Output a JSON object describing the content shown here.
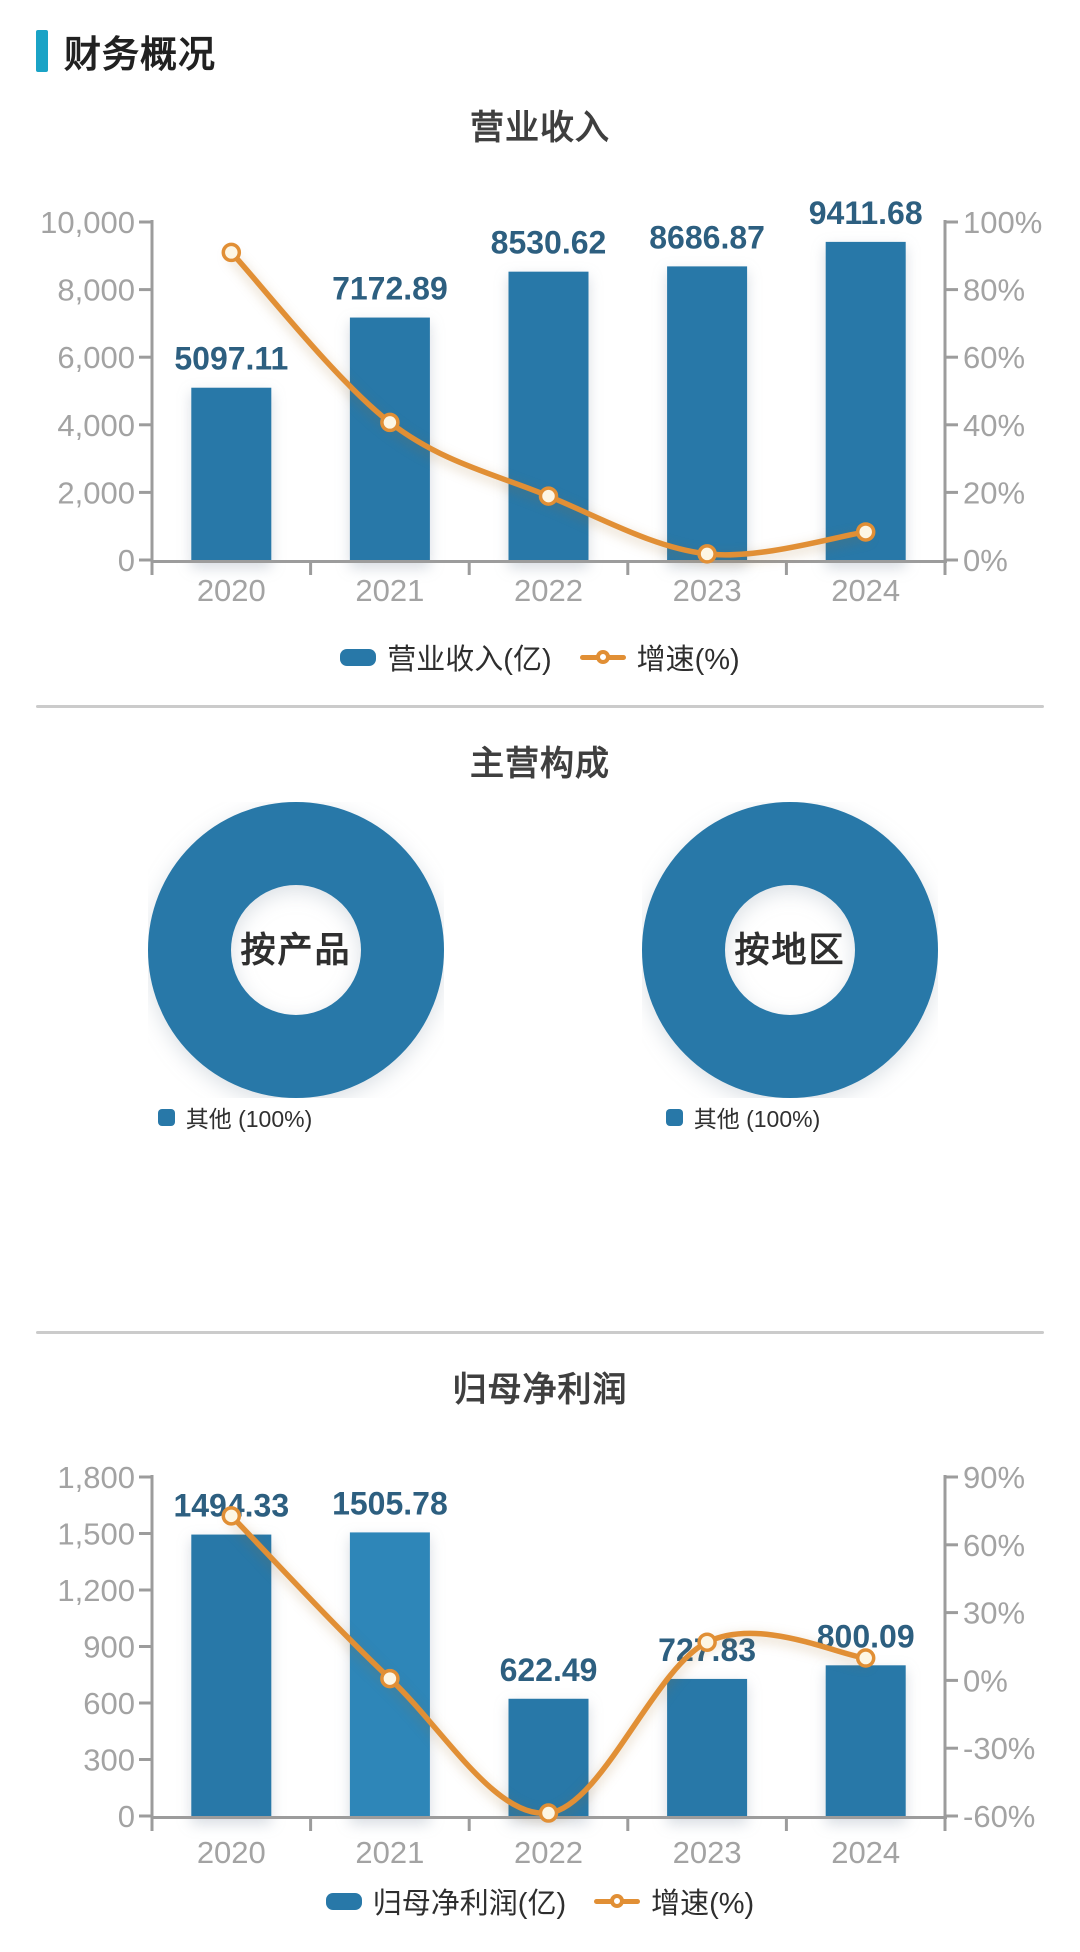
{
  "header": {
    "title": "财务概况"
  },
  "colors": {
    "accent": "#1aa3c6",
    "bar": "#2878a8",
    "bar_highlight": "#2e86b8",
    "line": "#e18f35",
    "marker_fill": "#fdf6e4",
    "value_label": "#2d5f80",
    "tick_label": "#a3a3a3",
    "axis_line": "#9c9c9c",
    "chart_title": "#3f3f3f",
    "legend_text": "#2e2e2e",
    "divider": "#cbcbcb"
  },
  "chart_data": [
    {
      "type": "bar",
      "title": "营业收入",
      "categories": [
        "2020",
        "2021",
        "2022",
        "2023",
        "2024"
      ],
      "series": [
        {
          "name": "营业收入(亿)",
          "type": "bar",
          "axis": "left",
          "values": [
            5097.11,
            7172.89,
            8530.62,
            8686.87,
            9411.68
          ]
        },
        {
          "name": "增速(%)",
          "type": "line",
          "axis": "right",
          "values": [
            91.0,
            40.7,
            18.9,
            1.8,
            8.3
          ]
        }
      ],
      "left_axis": {
        "min": 0,
        "max": 10000,
        "step": 2000,
        "tick_labels": [
          "10,000",
          "8,000",
          "6,000",
          "4,000",
          "2,000",
          "0"
        ]
      },
      "right_axis": {
        "min": 0,
        "max": 100,
        "step": 20,
        "tick_labels": [
          "100%",
          "80%",
          "60%",
          "40%",
          "20%",
          "0%"
        ]
      },
      "legend_position": "bottom",
      "grid": false
    },
    {
      "type": "pie",
      "title": "主营构成",
      "charts": [
        {
          "center_label": "按产品",
          "slices": [
            {
              "label": "其他",
              "value_pct": 100
            }
          ],
          "legend": "其他 (100%)"
        },
        {
          "center_label": "按地区",
          "slices": [
            {
              "label": "其他",
              "value_pct": 100
            }
          ],
          "legend": "其他 (100%)"
        }
      ]
    },
    {
      "type": "bar",
      "title": "归母净利润",
      "categories": [
        "2020",
        "2021",
        "2022",
        "2023",
        "2024"
      ],
      "series": [
        {
          "name": "归母净利润(亿)",
          "type": "bar",
          "axis": "left",
          "values": [
            1494.33,
            1505.78,
            622.49,
            727.83,
            800.09
          ],
          "bar_colors": [
            "#2878a8",
            "#2e86b8",
            "#2878a8",
            "#2878a8",
            "#2878a8"
          ]
        },
        {
          "name": "增速(%)",
          "type": "line",
          "axis": "right",
          "values": [
            72.8,
            0.8,
            -58.7,
            16.9,
            9.9
          ]
        }
      ],
      "left_axis": {
        "min": 0,
        "max": 1800,
        "step": 300,
        "tick_labels": [
          "1,800",
          "1,500",
          "1,200",
          "900",
          "600",
          "300",
          "0"
        ]
      },
      "right_axis": {
        "min": -60,
        "max": 90,
        "step": 30,
        "tick_labels": [
          "90%",
          "60%",
          "30%",
          "0%",
          "-30%",
          "-60%"
        ]
      },
      "legend_position": "bottom",
      "grid": false
    }
  ]
}
